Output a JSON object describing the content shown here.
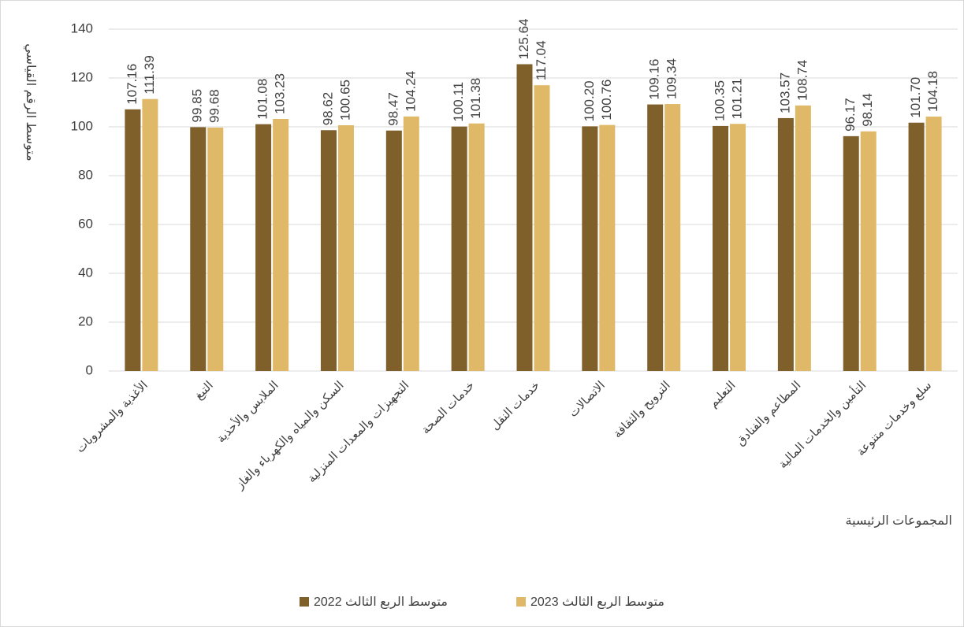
{
  "chart_data": {
    "type": "bar",
    "y_label": "متوسط الرقم القياسي",
    "x_label": "المجموعات الرئيسية",
    "categories": [
      "الأغذية والمشروبات",
      "التبغ",
      "الملابس والأحذية",
      "السكن والمياه والكهرباء والغاز",
      "التجهيزات والمعدات المنزلية",
      "خدمات الصحة",
      "خدمات النقل",
      "الاتصالات",
      "الترويح والثقافة",
      "التعليم",
      "المطاعم والفنادق",
      "التأمين والخدمات المالية",
      "سلع وخدمات متنوعة"
    ],
    "series": [
      {
        "name": "متوسط الربع الثالث 2022",
        "color": "#7f5f2a",
        "values": [
          107.16,
          99.85,
          101.08,
          98.62,
          98.47,
          100.11,
          125.64,
          100.2,
          109.16,
          100.35,
          103.57,
          96.17,
          101.7
        ],
        "value_labels": [
          "107.16",
          "99.85",
          "101.08",
          "98.62",
          "98.47",
          "100.11",
          "125.64",
          "100.20",
          "109.16",
          "100.35",
          "103.57",
          "96.17",
          "101.70"
        ]
      },
      {
        "name": "متوسط الربع الثالث 2023",
        "color": "#dfb968",
        "values": [
          111.39,
          99.68,
          103.23,
          100.65,
          104.24,
          101.38,
          117.04,
          100.76,
          109.34,
          101.21,
          108.74,
          98.14,
          104.18
        ],
        "value_labels": [
          "111.39",
          "99.68",
          "103.23",
          "100.65",
          "104.24",
          "101.38",
          "117.04",
          "100.76",
          "109.34",
          "101.21",
          "108.74",
          "98.14",
          "104.18"
        ]
      }
    ],
    "ylim": [
      0,
      140
    ],
    "yticks": [
      0,
      20,
      40,
      60,
      80,
      100,
      120,
      140
    ],
    "grid": true,
    "legend": "bottom"
  }
}
